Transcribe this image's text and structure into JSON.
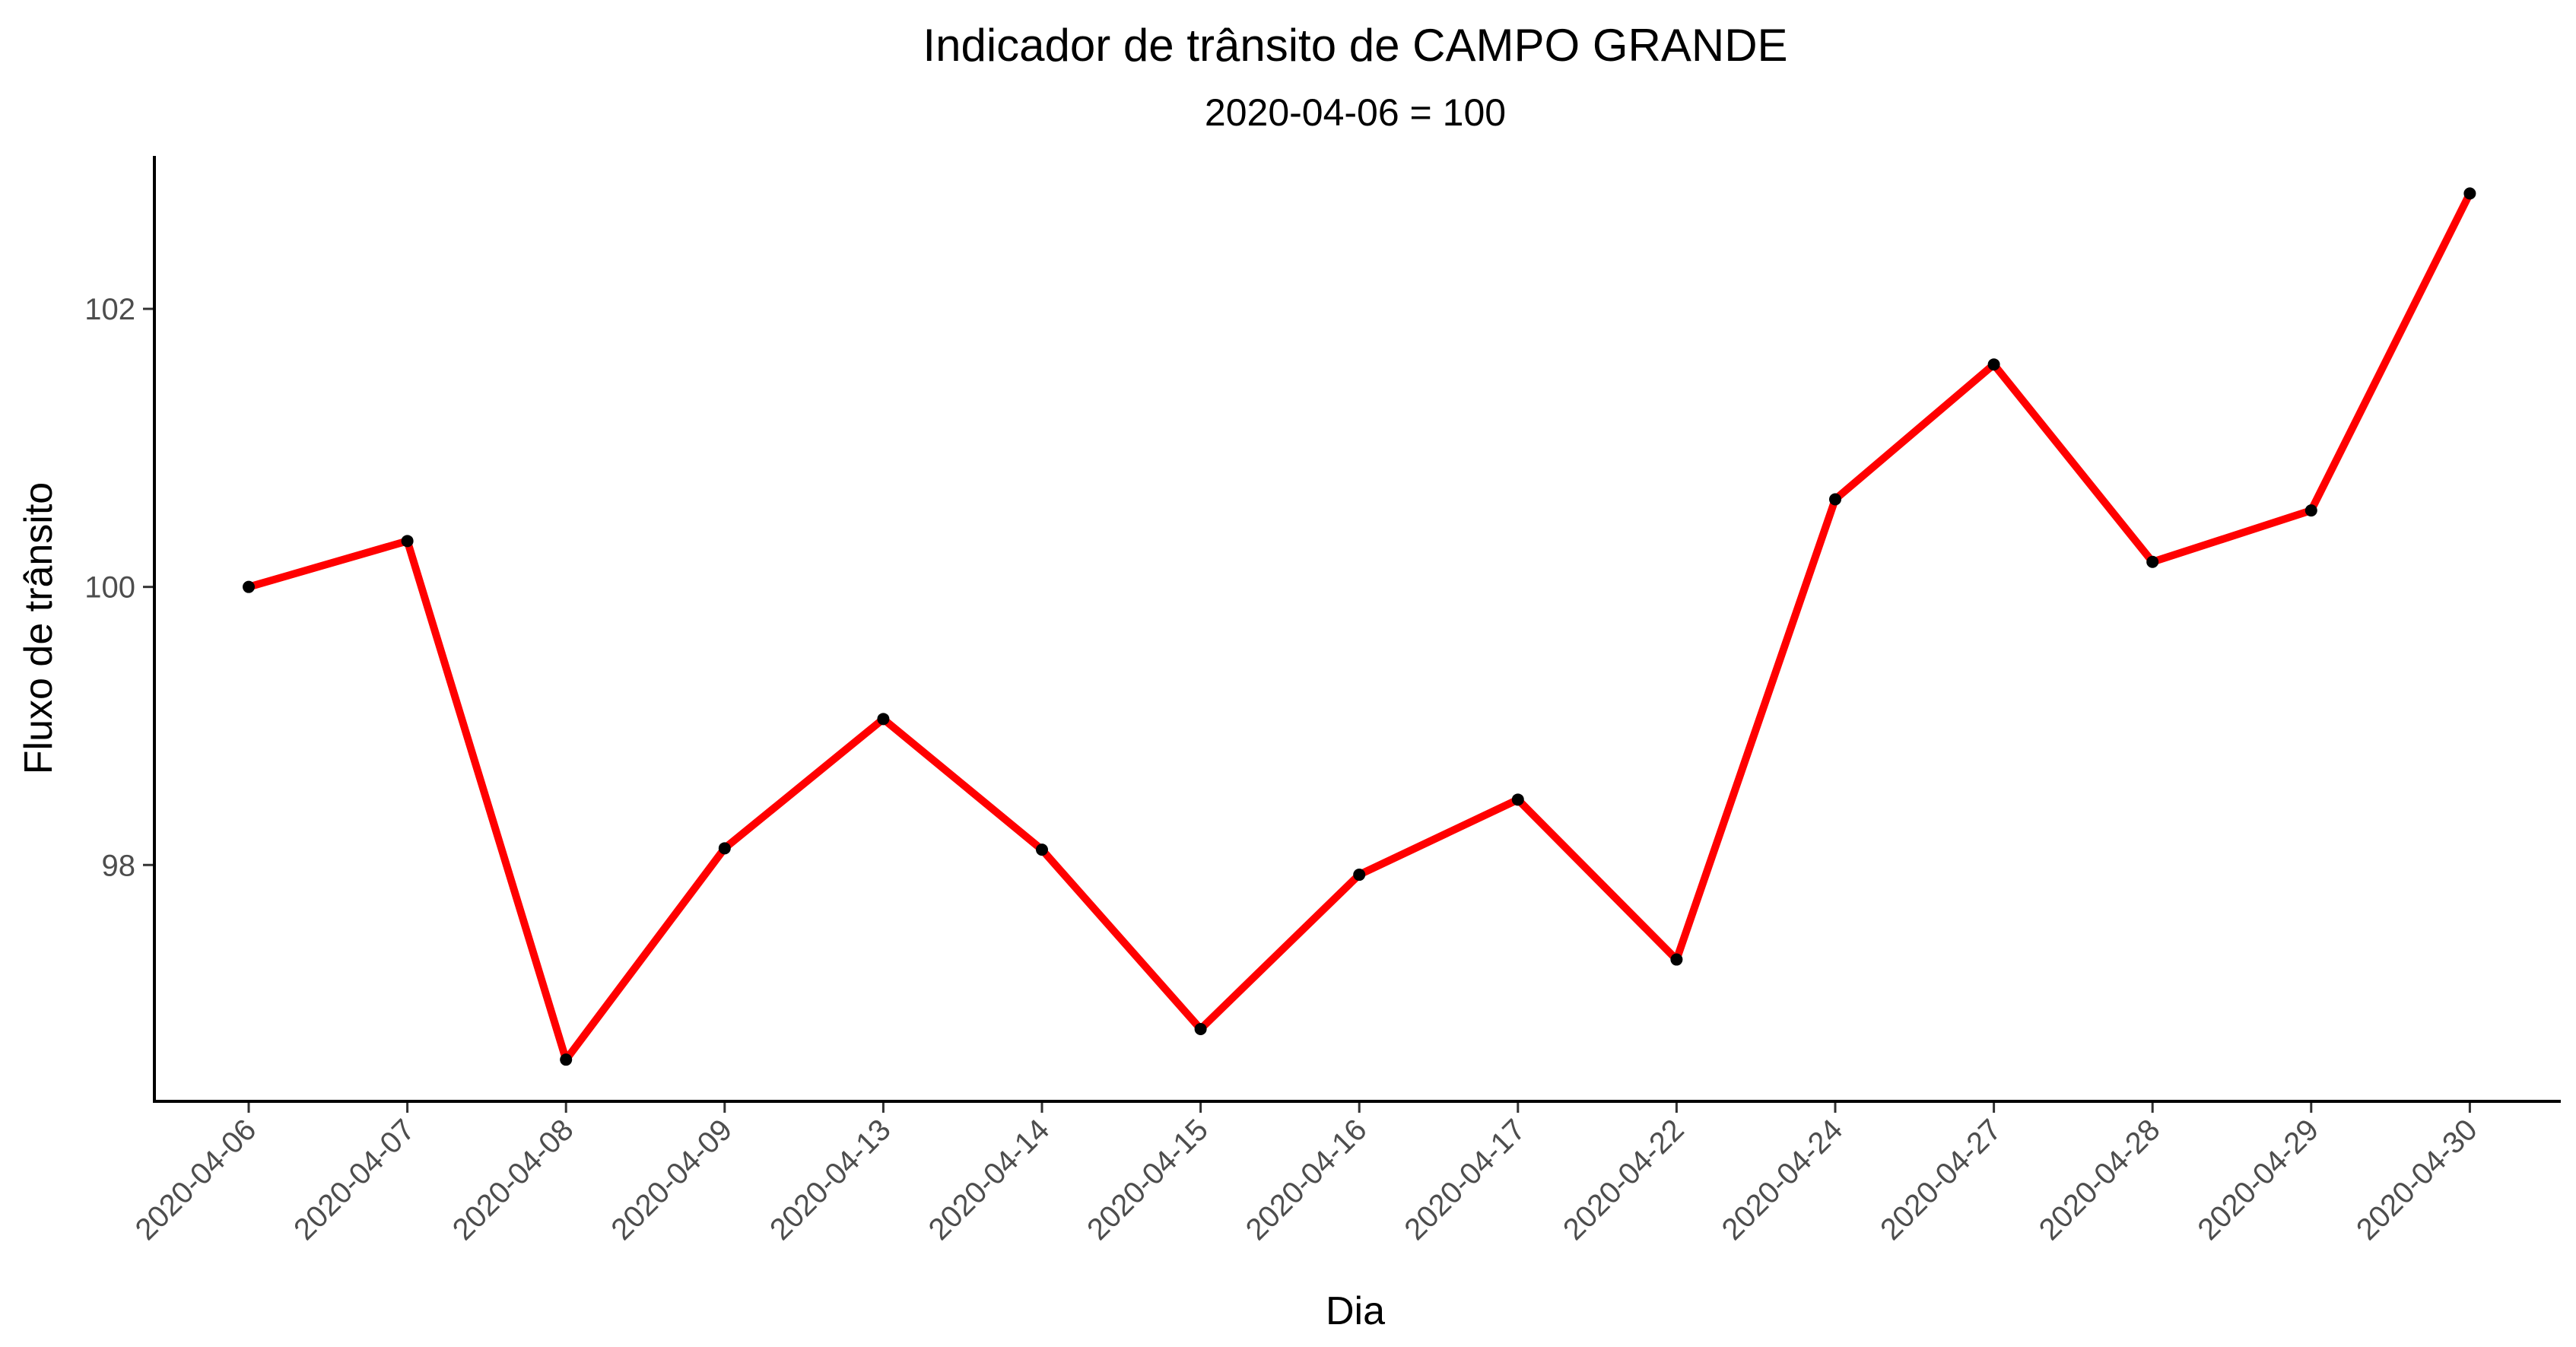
{
  "chart_data": {
    "type": "line",
    "title": "Indicador de trânsito de CAMPO GRANDE",
    "subtitle": "2020-04-06 = 100",
    "xlabel": "Dia",
    "ylabel": "Fluxo de trânsito",
    "categories": [
      "2020-04-06",
      "2020-04-07",
      "2020-04-08",
      "2020-04-09",
      "2020-04-13",
      "2020-04-14",
      "2020-04-15",
      "2020-04-16",
      "2020-04-17",
      "2020-04-22",
      "2020-04-24",
      "2020-04-27",
      "2020-04-28",
      "2020-04-29",
      "2020-04-30"
    ],
    "series": [
      {
        "values": [
          100.0,
          100.33,
          96.6,
          98.12,
          99.05,
          98.11,
          96.82,
          97.93,
          98.47,
          97.32,
          100.63,
          101.6,
          100.18,
          100.55,
          102.83
        ]
      }
    ],
    "yticks": [
      98,
      100,
      102
    ],
    "ylim": [
      96.3,
      103.1
    ],
    "grid": false,
    "legend": "none",
    "colors": {
      "line": "#ff0000",
      "points": "#000000",
      "axis": "#000000",
      "tick_text": "#4d4d4d"
    }
  }
}
